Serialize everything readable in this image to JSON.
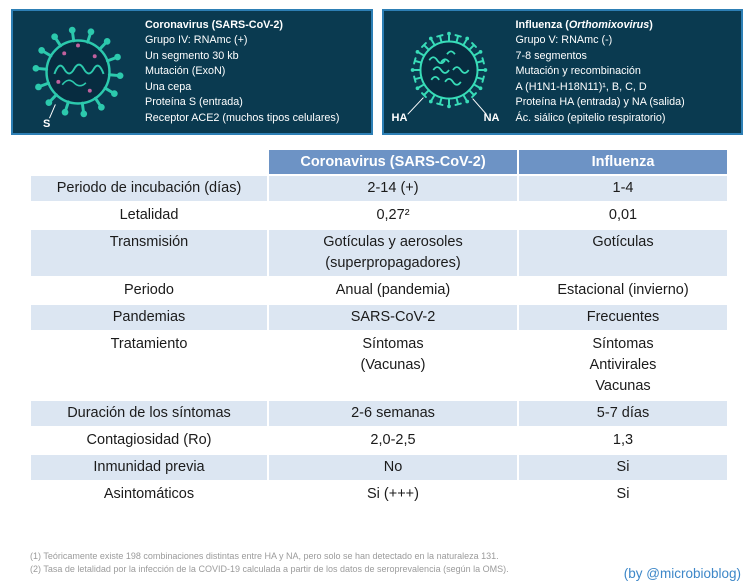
{
  "icons": {
    "coronavirus_illustration": "coronavirus-virion-icon",
    "influenza_illustration": "influenza-virion-icon"
  },
  "colors": {
    "panel_bg": "#0a3a50",
    "panel_border": "#2d7fb5",
    "virus_teal": "#2cc9ad",
    "virus_teal_bright": "#38dcb8",
    "accent_magenta": "#c2619e",
    "table_header_bg": "#6d93c5",
    "table_alt_row_bg": "#dce6f2",
    "credit_color": "#3d87c8"
  },
  "panels": {
    "coronavirus": {
      "title": "Coronavirus (SARS-CoV-2)",
      "lines": [
        "Grupo IV: RNAmc (+)",
        "Un segmento 30 kb",
        "Mutación (ExoN)",
        "Una cepa",
        "Proteína S (entrada)",
        "Receptor ACE2 (muchos tipos celulares)"
      ],
      "spike_label": "S"
    },
    "influenza": {
      "title_pre": "Influenza (",
      "title_italic": "Orthomixovirus",
      "title_post": ")",
      "lines": [
        "Grupo V: RNAmc (-)",
        "7-8 segmentos",
        "Mutación y recombinación",
        "A (H1N1-H18N11)¹, B, C, D",
        "Proteína HA (entrada) y NA (salida)",
        "Ác. siálico (epitelio respiratorio)"
      ],
      "ha_label": "HA",
      "na_label": "NA"
    }
  },
  "table": {
    "headers": [
      "",
      "Coronavirus (SARS-CoV-2)",
      "Influenza"
    ],
    "rows": [
      {
        "label": "Periodo de incubación (días)",
        "cov": "2-14 (+)",
        "flu": "1-4"
      },
      {
        "label": "Letalidad",
        "cov": "0,27²",
        "flu": "0,01"
      },
      {
        "label": "Transmisión",
        "cov": "Gotículas y aerosoles\n(superpropagadores)",
        "flu": "Gotículas"
      },
      {
        "label": "Periodo",
        "cov": "Anual (pandemia)",
        "flu": "Estacional (invierno)"
      },
      {
        "label": "Pandemias",
        "cov": "SARS-CoV-2",
        "flu": "Frecuentes"
      },
      {
        "label": "Tratamiento",
        "cov": "Síntomas\n(Vacunas)",
        "flu": "Síntomas\nAntivirales\nVacunas"
      },
      {
        "label": "Duración de los síntomas",
        "cov": "2-6 semanas",
        "flu": "5-7 días"
      },
      {
        "label": "Contagiosidad (Ro)",
        "cov": "2,0-2,5",
        "flu": "1,3"
      },
      {
        "label": "Inmunidad previa",
        "cov": "No",
        "flu": "Si"
      },
      {
        "label": "Asintomáticos",
        "cov": "Si (+++)",
        "flu": "Si"
      }
    ]
  },
  "footnotes": [
    "(1) Teóricamente existe 198 combinaciones distintas entre HA y NA, pero solo se han detectado en la naturaleza 131.",
    "(2) Tasa de letalidad por la infección de la COVID-19 calculada a partir de los datos de seroprevalencia (según la OMS)."
  ],
  "credit": "(by @microbioblog)"
}
